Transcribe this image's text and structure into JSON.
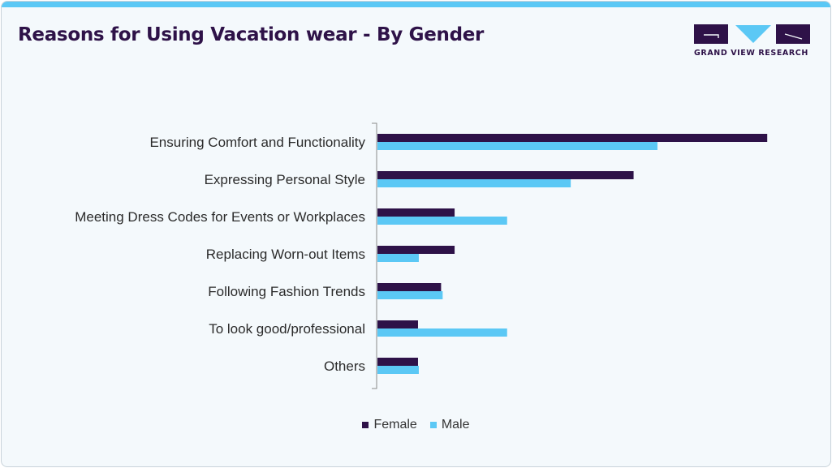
{
  "header": {
    "title": "Reasons for Using Vacation wear - By Gender"
  },
  "logo": {
    "text": "GRAND VIEW RESEARCH",
    "color": "#2e1248",
    "accent": "#5bc8f5"
  },
  "chart_data": {
    "type": "bar",
    "orientation": "horizontal",
    "title": "Reasons for Using Vacation wear - By Gender",
    "categories": [
      "Ensuring Comfort and Functionality",
      "Expressing Personal Style",
      "Meeting Dress Codes for Events or Workplaces",
      "Replacing Worn-out Items",
      "Following Fashion Trends",
      "To look good/professional",
      "Others"
    ],
    "series": [
      {
        "name": "Female",
        "color": "#2e1248",
        "values": [
          49,
          32.2,
          9.7,
          9.7,
          8,
          5.1,
          5.1
        ]
      },
      {
        "name": "Male",
        "color": "#5bc8f5",
        "values": [
          35.2,
          24.3,
          16.3,
          5.2,
          8.2,
          16.3,
          5.2
        ]
      }
    ],
    "xlim": [
      0,
      50
    ],
    "grid": false,
    "legend_position": "bottom"
  }
}
